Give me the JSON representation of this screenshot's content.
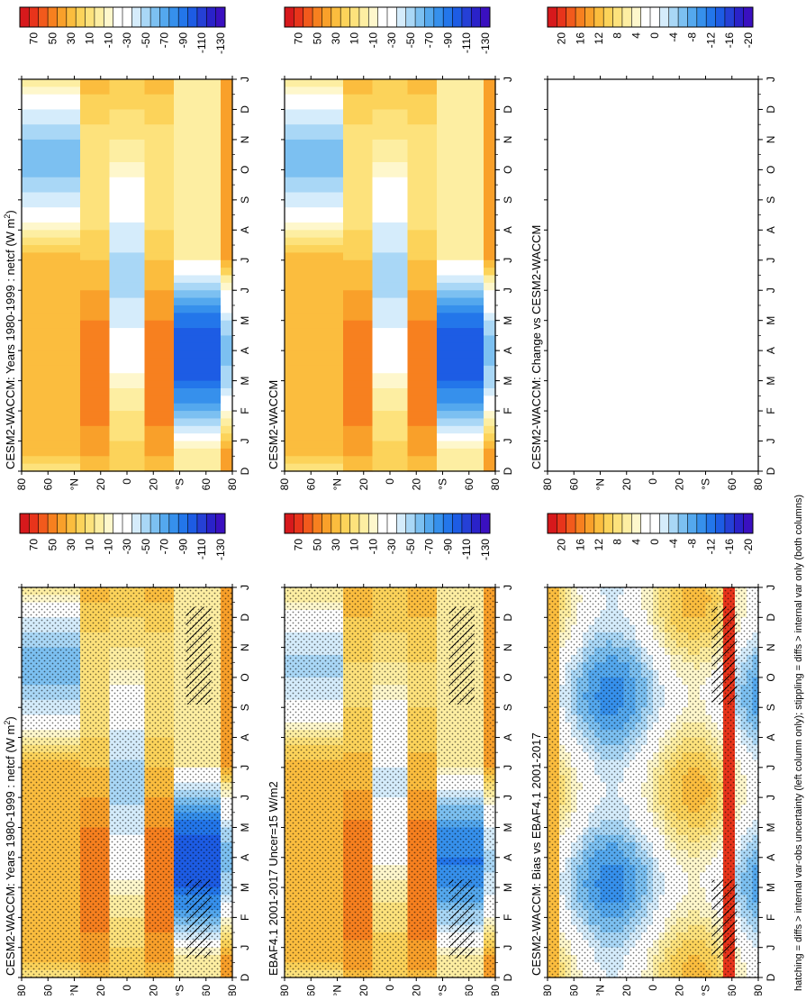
{
  "footer_caption": "hatching = diffs > internal var-obs uncertainty (left column only); stippling = diffs > internal var only (both columns)",
  "month_labels": [
    "D",
    "J",
    "F",
    "M",
    "A",
    "M",
    "J",
    "J",
    "A",
    "S",
    "O",
    "N",
    "D",
    "J"
  ],
  "lat_labels": [
    "80",
    "60",
    "°N",
    "20",
    "0",
    "20",
    "°S",
    "60",
    "80"
  ],
  "colorbars": {
    "main": {
      "labels": [
        "70",
        "50",
        "30",
        "10",
        "-10",
        "-30",
        "-50",
        "-70",
        "-90",
        "-110",
        "-130"
      ],
      "colors": [
        "#d7191c",
        "#e8341b",
        "#f25a1c",
        "#f7801f",
        "#f9a02a",
        "#fbbd3e",
        "#fcd35a",
        "#fde27c",
        "#fdeea2",
        "#fef7cc",
        "#ffffff",
        "#ffffff",
        "#d5ecfb",
        "#a9d7f6",
        "#7cc0f1",
        "#54a8ee",
        "#3690ec",
        "#2376ea",
        "#1d5ce4",
        "#2540d6",
        "#2a22c9",
        "#3a10c0"
      ]
    },
    "diff": {
      "labels": [
        "20",
        "16",
        "12",
        "8",
        "4",
        "0",
        "-4",
        "-8",
        "-12",
        "-16",
        "-20"
      ],
      "colors": [
        "#d7191c",
        "#e8341b",
        "#f25a1c",
        "#f7801f",
        "#f9a02a",
        "#fbbd3e",
        "#fcd35a",
        "#fde27c",
        "#fdeea2",
        "#fef7cc",
        "#ffffff",
        "#ffffff",
        "#d5ecfb",
        "#a9d7f6",
        "#7cc0f1",
        "#54a8ee",
        "#3690ec",
        "#2376ea",
        "#1d5ce4",
        "#2540d6",
        "#2a22c9",
        "#3a10c0"
      ]
    }
  },
  "panels": [
    {
      "id": "left-top",
      "title": "CESM2-WACCM: Years 1980-1999 : netcf (W m",
      "title_sup": "2",
      "title_tail": ")",
      "colorbar": "main",
      "field": "model",
      "stipple": true,
      "hatch": true
    },
    {
      "id": "left-mid",
      "title": "EBAF4.1 2001-2017 Uncer=15 W/m2",
      "title_sup": "",
      "title_tail": "",
      "colorbar": "main",
      "field": "obs",
      "stipple": true,
      "hatch": true
    },
    {
      "id": "left-bot",
      "title": "CESM2-WACCM: Bias vs EBAF4.1 2001-2017",
      "title_sup": "",
      "title_tail": "",
      "colorbar": "diff",
      "field": "bias",
      "stipple": true,
      "hatch": true
    },
    {
      "id": "right-top",
      "title": "CESM2-WACCM: Years 1980-1999 : netcf (W m",
      "title_sup": "2",
      "title_tail": ")",
      "colorbar": "main",
      "field": "model",
      "stipple": false,
      "hatch": false
    },
    {
      "id": "right-mid",
      "title": "CESM2-WACCM",
      "title_sup": "",
      "title_tail": "",
      "colorbar": "main",
      "field": "model",
      "stipple": false,
      "hatch": false
    },
    {
      "id": "right-bot",
      "title": "CESM2-WACCM: Change vs CESM2-WACCM",
      "title_sup": "",
      "title_tail": "",
      "colorbar": "diff",
      "field": "empty",
      "stipple": false,
      "hatch": false
    }
  ],
  "chart_data": {
    "type": "heatmap",
    "variable": "netcf",
    "units": "W m-2",
    "x_axis": "month (D J F M A M J J A S O N D J)",
    "y_axis": "latitude (80°N to 80°S)",
    "main_colorbar_ticks": [
      70,
      50,
      30,
      10,
      -10,
      -30,
      -50,
      -70,
      -90,
      -110,
      -130
    ],
    "diff_colorbar_ticks": [
      20,
      16,
      12,
      8,
      4,
      0,
      -4,
      -8,
      -12,
      -16,
      -20
    ],
    "panels": [
      "CESM2-WACCM: Years 1980-1999 : netcf (W m-2)",
      "EBAF4.1 2001-2017 Uncer=15 W/m2",
      "CESM2-WACCM: Bias vs EBAF4.1 2001-2017",
      "CESM2-WACCM: Years 1980-1999 : netcf (W m-2)",
      "CESM2-WACCM",
      "CESM2-WACCM: Change vs CESM2-WACCM"
    ]
  }
}
